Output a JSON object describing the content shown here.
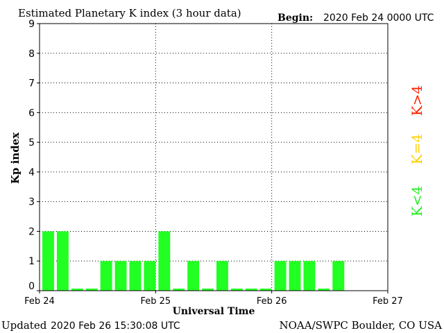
{
  "header": {
    "title": "Estimated Planetary K index (3 hour data)",
    "begin_label": "Begin:",
    "begin_value": "2020 Feb 24 0000 UTC"
  },
  "footer": {
    "updated_label": "Updated",
    "updated_value": "2020 Feb 26 15:30:08 UTC",
    "source": "NOAA/SWPC Boulder, CO USA"
  },
  "legend": {
    "items": [
      {
        "label": "K>4",
        "color": "#ff2000"
      },
      {
        "label": "K=4",
        "color": "#ffd000"
      },
      {
        "label": "K<4",
        "color": "#22ee22"
      }
    ]
  },
  "chart_data": {
    "type": "bar",
    "title": "Estimated Planetary K index (3 hour data)",
    "xlabel": "Universal Time",
    "ylabel": "Kp index",
    "ylim": [
      0,
      9
    ],
    "yticks": [
      0,
      1,
      2,
      3,
      4,
      5,
      6,
      7,
      8,
      9
    ],
    "xtick_labels": [
      "Feb 24",
      "Feb 25",
      "Feb 26",
      "Feb 27"
    ],
    "slots_total": 24,
    "grid": true,
    "bar_color": "#22ff22",
    "values": [
      2,
      2,
      0.07,
      0.07,
      1,
      1,
      1,
      1,
      2,
      0.07,
      1,
      0.07,
      1,
      0.07,
      0.07,
      0.07,
      1,
      1,
      1,
      0.07,
      1
    ]
  }
}
